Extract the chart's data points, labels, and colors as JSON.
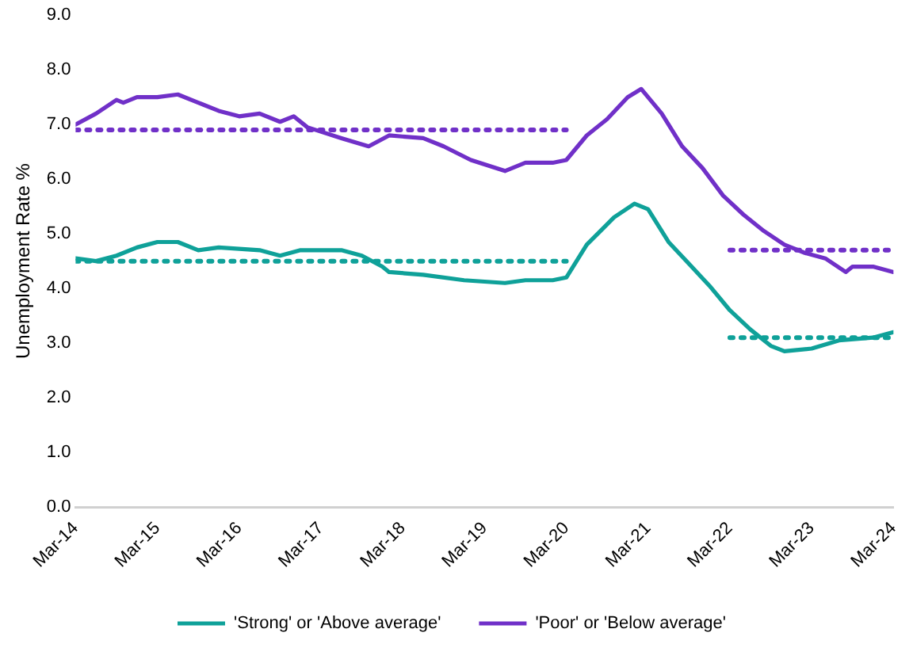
{
  "chart_data": {
    "type": "line",
    "ylabel": "Unemployment Rate %",
    "xlim": [
      "2014-03",
      "2024-03"
    ],
    "xticks": [
      {
        "value": "2014-03",
        "label": "Mar-14"
      },
      {
        "value": "2015-03",
        "label": "Mar-15"
      },
      {
        "value": "2016-03",
        "label": "Mar-16"
      },
      {
        "value": "2017-03",
        "label": "Mar-17"
      },
      {
        "value": "2018-03",
        "label": "Mar-18"
      },
      {
        "value": "2019-03",
        "label": "Mar-19"
      },
      {
        "value": "2020-03",
        "label": "Mar-20"
      },
      {
        "value": "2021-03",
        "label": "Mar-21"
      },
      {
        "value": "2022-03",
        "label": "Mar-22"
      },
      {
        "value": "2023-03",
        "label": "Mar-23"
      },
      {
        "value": "2024-03",
        "label": "Mar-24"
      }
    ],
    "ylim": [
      0,
      9
    ],
    "yticks": [
      {
        "value": 0,
        "label": "0.0"
      },
      {
        "value": 1,
        "label": "1.0"
      },
      {
        "value": 2,
        "label": "2.0"
      },
      {
        "value": 3,
        "label": "3.0"
      },
      {
        "value": 4,
        "label": "4.0"
      },
      {
        "value": 5,
        "label": "5.0"
      },
      {
        "value": 6,
        "label": "6.0"
      },
      {
        "value": 7,
        "label": "7.0"
      },
      {
        "value": 8,
        "label": "8.0"
      },
      {
        "value": 9,
        "label": "9.0"
      }
    ],
    "grid": false,
    "legend": "bottom",
    "marker": "none",
    "line_style": "solid",
    "series": [
      {
        "name": "'Strong' or 'Above average'",
        "color": "#0fa199",
        "x": [
          "2014-03",
          "2014-06",
          "2014-09",
          "2014-12",
          "2015-03",
          "2015-06",
          "2015-09",
          "2015-12",
          "2016-06",
          "2016-09",
          "2016-12",
          "2017-06",
          "2017-09",
          "2017-12",
          "2018-01",
          "2018-06",
          "2018-12",
          "2019-06",
          "2019-09",
          "2020-01",
          "2020-03",
          "2020-06",
          "2020-10",
          "2021-01",
          "2021-03",
          "2021-06",
          "2021-09",
          "2021-12",
          "2022-03",
          "2022-06",
          "2022-09",
          "2022-11",
          "2023-03",
          "2023-07",
          "2023-12",
          "2024-03"
        ],
        "values": [
          4.55,
          4.5,
          4.6,
          4.75,
          4.85,
          4.85,
          4.7,
          4.75,
          4.7,
          4.6,
          4.7,
          4.7,
          4.6,
          4.4,
          4.3,
          4.25,
          4.15,
          4.1,
          4.15,
          4.15,
          4.2,
          4.8,
          5.3,
          5.55,
          5.45,
          4.85,
          4.45,
          4.05,
          3.6,
          3.25,
          2.95,
          2.85,
          2.9,
          3.05,
          3.1,
          3.2
        ]
      },
      {
        "name": "'Poor' or 'Below average'",
        "color": "#7030c8",
        "x": [
          "2014-03",
          "2014-06",
          "2014-09",
          "2014-10",
          "2014-12",
          "2015-03",
          "2015-06",
          "2015-09",
          "2015-12",
          "2016-03",
          "2016-06",
          "2016-09",
          "2016-11",
          "2017-01",
          "2017-06",
          "2017-10",
          "2018-01",
          "2018-06",
          "2018-09",
          "2019-01",
          "2019-06",
          "2019-09",
          "2020-01",
          "2020-03",
          "2020-06",
          "2020-09",
          "2020-12",
          "2021-02",
          "2021-05",
          "2021-08",
          "2021-11",
          "2022-02",
          "2022-05",
          "2022-08",
          "2022-11",
          "2023-02",
          "2023-05",
          "2023-08",
          "2023-09",
          "2023-12",
          "2024-03"
        ],
        "values": [
          7.0,
          7.2,
          7.45,
          7.4,
          7.5,
          7.5,
          7.55,
          7.4,
          7.25,
          7.15,
          7.2,
          7.05,
          7.15,
          6.95,
          6.75,
          6.6,
          6.8,
          6.75,
          6.6,
          6.35,
          6.15,
          6.3,
          6.3,
          6.35,
          6.8,
          7.1,
          7.5,
          7.65,
          7.2,
          6.6,
          6.2,
          5.7,
          5.35,
          5.05,
          4.8,
          4.65,
          4.55,
          4.3,
          4.4,
          4.4,
          4.3
        ]
      },
      {
        "color": "#0fa199",
        "line_style": "dotted",
        "x": [
          "2014-03",
          "2020-03"
        ],
        "values": [
          4.5,
          4.5
        ]
      },
      {
        "color": "#0fa199",
        "line_style": "dotted",
        "x": [
          "2022-03",
          "2024-03"
        ],
        "values": [
          3.1,
          3.1
        ]
      },
      {
        "color": "#7030c8",
        "line_style": "dotted",
        "x": [
          "2014-03",
          "2020-03"
        ],
        "values": [
          6.9,
          6.9
        ]
      },
      {
        "color": "#7030c8",
        "line_style": "dotted",
        "x": [
          "2022-03",
          "2024-03"
        ],
        "values": [
          4.7,
          4.7
        ]
      }
    ]
  }
}
